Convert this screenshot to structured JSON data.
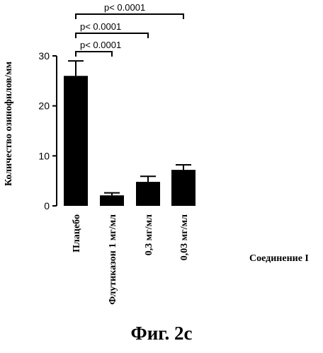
{
  "figure_caption": "Фиг. 2с",
  "chart_data": {
    "type": "bar",
    "ylabel": "Количество озинофилов/мм",
    "xlabel": "Соединение I",
    "categories": [
      "Плацебо",
      "Флутиказон 1 мг/мл",
      "0,3 мг/мл",
      "0,03 мг/мл"
    ],
    "values": [
      26.0,
      2.1,
      4.8,
      7.2
    ],
    "errors": [
      3.0,
      0.5,
      1.1,
      1.0
    ],
    "ylim": [
      0,
      30
    ],
    "yticks": [
      0,
      10,
      20,
      30
    ],
    "grid": false,
    "bar_color": "#000000",
    "significance": [
      {
        "from": 0,
        "to": 1,
        "label": "p< 0.0001"
      },
      {
        "from": 0,
        "to": 2,
        "label": "p< 0.0001"
      },
      {
        "from": 0,
        "to": 3,
        "label": "p< 0.0001"
      }
    ]
  }
}
